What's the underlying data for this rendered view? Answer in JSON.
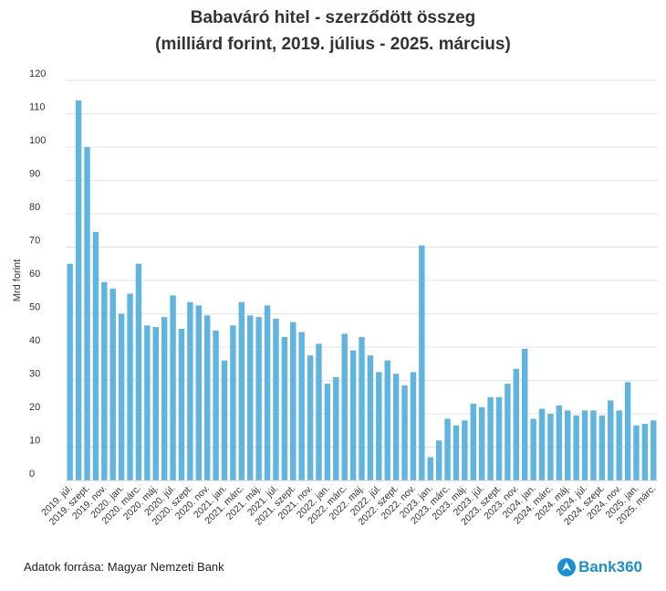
{
  "header": {
    "title": "Babaváró hitel - szerződött összeg",
    "subtitle": "(milliárd forint, 2019. július - 2025. március)"
  },
  "footer": {
    "source": "Adatok forrása: Magyar Nemzeti Bank",
    "logo_text": "Bank360"
  },
  "chart_data": {
    "type": "bar",
    "title": "Babaváró hitel - szerződött összeg",
    "subtitle": "(milliárd forint, 2019. július - 2025. március)",
    "ylabel": "Mrd forint",
    "xlabel": "",
    "ylim": [
      0,
      120
    ],
    "yticks": [
      0,
      10,
      20,
      30,
      40,
      50,
      60,
      70,
      80,
      90,
      100,
      110,
      120
    ],
    "grid": true,
    "bar_color": "#5fb4e0",
    "tick_labels": [
      "2019. júl.",
      "2019. szept.",
      "2019. nov.",
      "2020. jan.",
      "2020. márc.",
      "2020. máj.",
      "2020. júl.",
      "2020. szept.",
      "2020. nov.",
      "2021. jan.",
      "2021. márc.",
      "2021. máj.",
      "2021. júl.",
      "2021. szept.",
      "2021. nov.",
      "2022. jan.",
      "2022. márc.",
      "2022. máj.",
      "2022. júl.",
      "2022. szept.",
      "2022. nov.",
      "2023. jan.",
      "2023. márc.",
      "2023. máj.",
      "2023. júl.",
      "2023. szept.",
      "2023. nov.",
      "2024. jan.",
      "2024. márc.",
      "2024. máj.",
      "2024. júl.",
      "2024. szept.",
      "2024. nov.",
      "2025. jan.",
      "2025. márc."
    ],
    "values": [
      65,
      114,
      100,
      74.5,
      59.5,
      57.5,
      50,
      56,
      65,
      46.5,
      46,
      49,
      55.5,
      45.5,
      53.5,
      52.5,
      49.5,
      45,
      36,
      46.5,
      53.5,
      49.5,
      49,
      52.5,
      48.5,
      43,
      47.5,
      44.5,
      37.5,
      41,
      29,
      31,
      44,
      39,
      43,
      37.5,
      32.5,
      36,
      32,
      28.5,
      32.5,
      70.5,
      7,
      12,
      18.5,
      16.5,
      18,
      23,
      22,
      25,
      25,
      29,
      33.5,
      39.5,
      18.5,
      21.5,
      20,
      22.5,
      21,
      19.5,
      21,
      21,
      19.5,
      24,
      21,
      29.5,
      16.5,
      17,
      18
    ]
  }
}
